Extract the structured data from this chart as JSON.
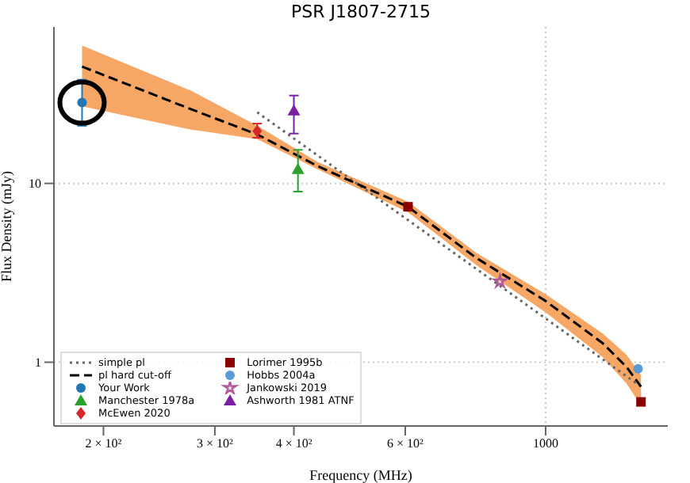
{
  "chart_data": {
    "type": "scatter",
    "title": "PSR J1807-2715",
    "xlabel": "Frequency (MHz)",
    "ylabel": "Flux Density (mJy)",
    "log": "xy",
    "grid": true,
    "legend": "bottom left",
    "xlim": [
      167,
      1560
    ],
    "xticks": [
      {
        "value": 200,
        "label": "2 × 10²"
      },
      {
        "value": 300,
        "label": "3 × 10²"
      },
      {
        "value": 400,
        "label": "4 × 10²"
      },
      {
        "value": 600,
        "label": "6 × 10²"
      },
      1000
    ],
    "ylim": [
      0.44,
      75
    ],
    "yticks": [
      1,
      10
    ],
    "series": [
      {
        "name": "simple pl",
        "type": "line",
        "line_style": "dotted",
        "marker": "none",
        "color": "#666666",
        "x": [
          350,
          1400
        ],
        "values": [
          25,
          0.75
        ]
      },
      {
        "name": "pl hard cut-off",
        "type": "line",
        "line_style": "dashed",
        "marker": "none",
        "color": "#000000",
        "x": [
          185,
          275,
          350,
          436,
          606,
          776,
          1000,
          1230,
          1343,
          1415
        ],
        "values": [
          45,
          26,
          18.8,
          12.5,
          7.4,
          3.84,
          2.2,
          1.28,
          0.94,
          0.73
        ],
        "lower": [
          27,
          20,
          17.7,
          12,
          6.9,
          3.5,
          1.9,
          1.07,
          0.76,
          0.57
        ],
        "upper": [
          59,
          33,
          21,
          13.2,
          7.9,
          4.1,
          2.4,
          1.45,
          1.1,
          0.85
        ]
      },
      {
        "name": "Your Work",
        "marker": "circle",
        "color": "#1f77b4",
        "x": [
          185
        ],
        "values": [
          28.3
        ],
        "errors": [
          [
            21,
            38
          ]
        ]
      },
      {
        "name": "Manchester 1978a",
        "marker": "triangle",
        "color": "#2ca02c",
        "x": [
          406
        ],
        "values": [
          12
        ],
        "errors": [
          [
            9,
            15.4
          ]
        ]
      },
      {
        "name": "McEwen 2020",
        "marker": "diamond",
        "color": "#d62728",
        "x": [
          350
        ],
        "values": [
          19.6
        ],
        "errors": [
          [
            18,
            21.6
          ]
        ]
      },
      {
        "name": "Lorimer 1995b",
        "marker": "square",
        "color": "#8b0000",
        "x": [
          606,
          1415
        ],
        "values": [
          7.4,
          0.6
        ]
      },
      {
        "name": "Hobbs 2004a",
        "marker": "circle",
        "color": "#5b9bd5",
        "x": [
          1400
        ],
        "values": [
          0.92
        ]
      },
      {
        "name": "Jankowski 2019",
        "marker": "star",
        "color": "#b05a9c",
        "x": [
          847
        ],
        "values": [
          2.83
        ]
      },
      {
        "name": "Ashworth 1981 ATNF",
        "marker": "triangle",
        "color": "#7b1fa2",
        "x": [
          400
        ],
        "values": [
          25.5
        ],
        "errors": [
          [
            19,
            31
          ]
        ]
      }
    ]
  }
}
